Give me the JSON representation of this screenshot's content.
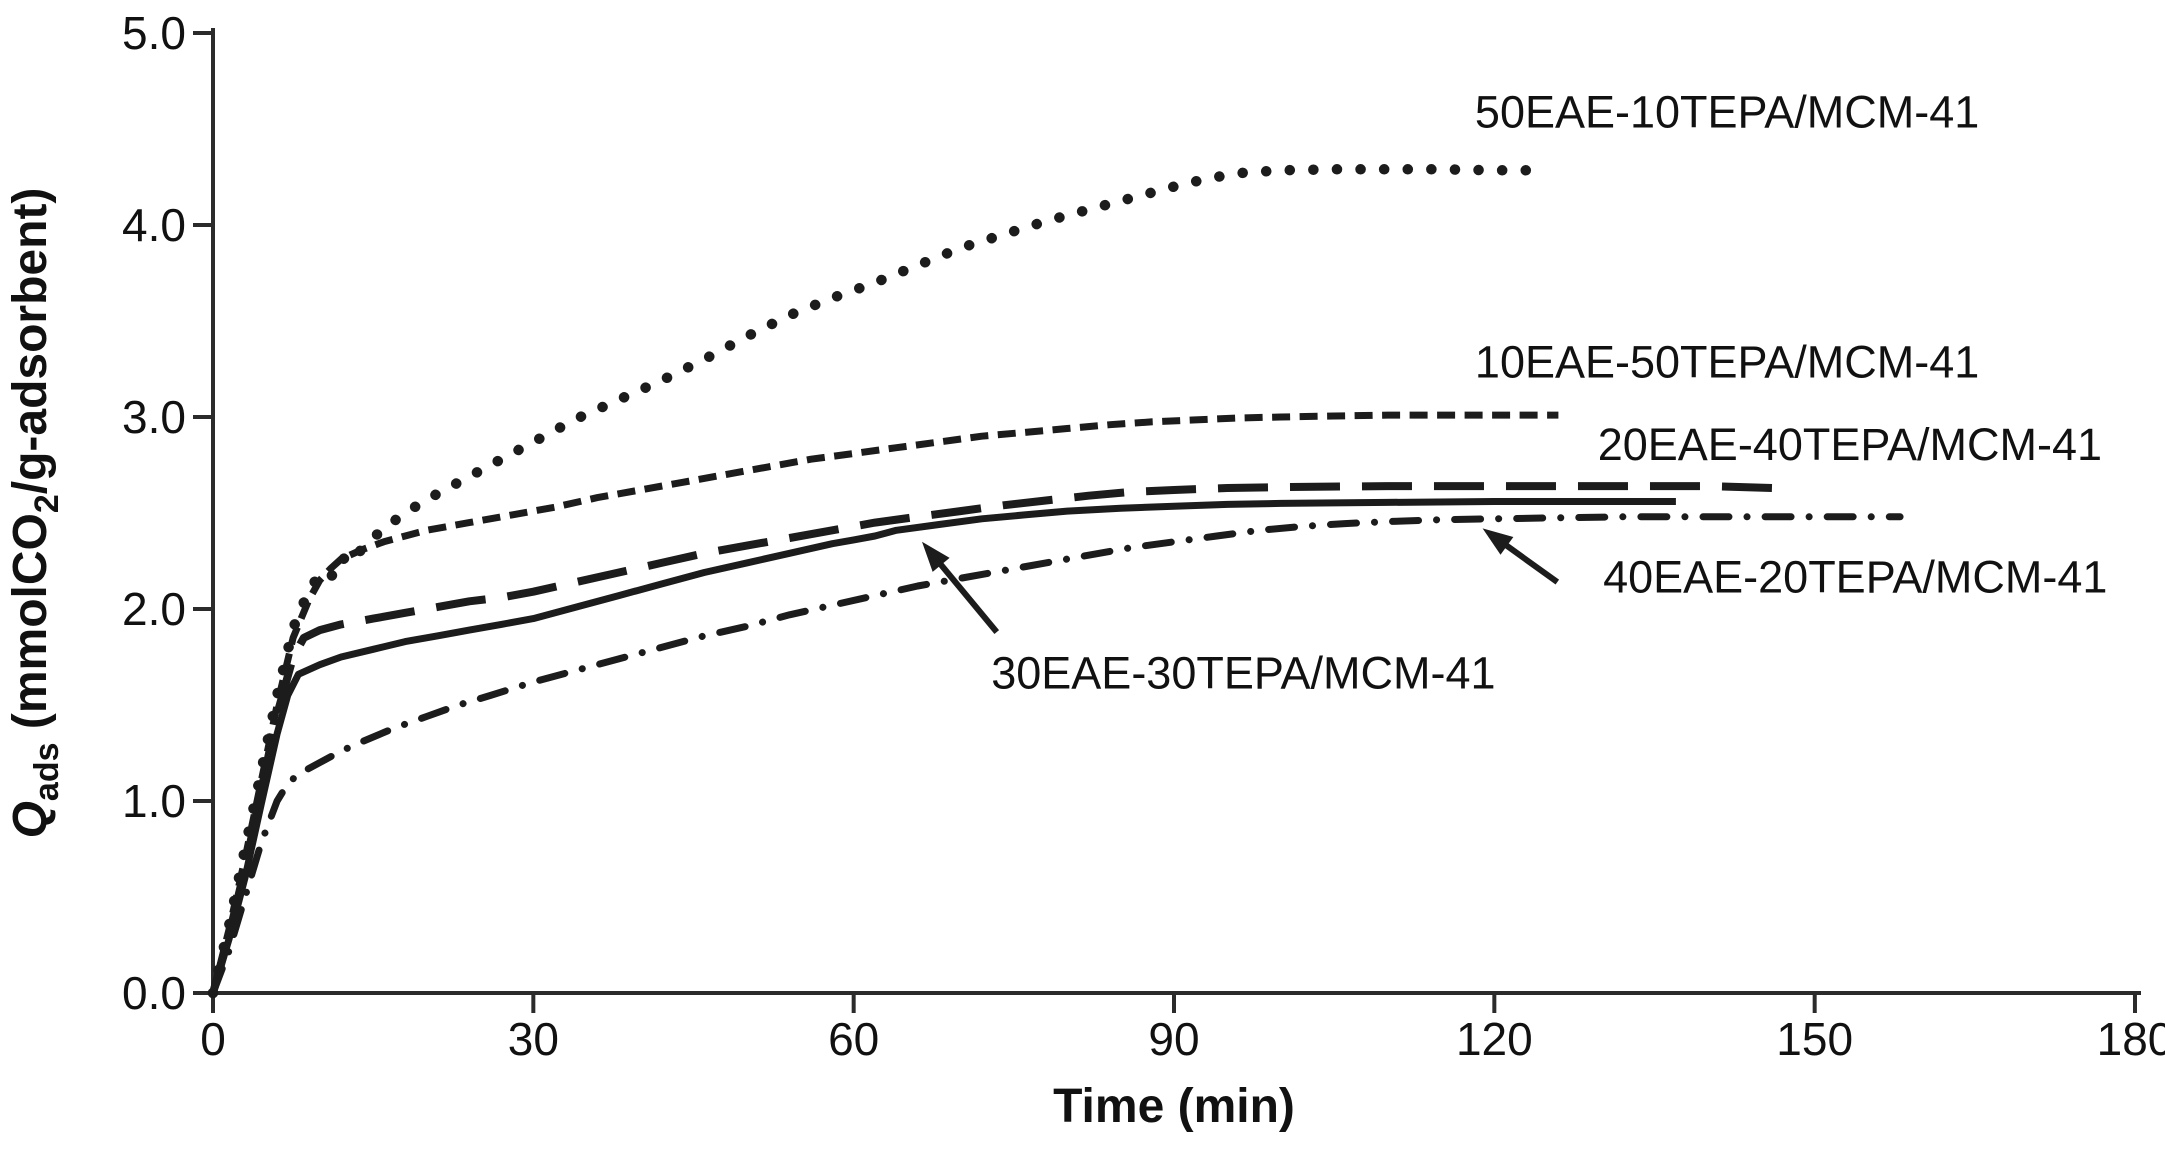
{
  "figure": {
    "background": "#ffffff",
    "ink": "#1c1c1c",
    "axis_color": "#2b2b2b"
  },
  "chart_data": {
    "type": "line",
    "title": "",
    "xlabel": "Time (min)",
    "ylabel": "Qads (mmolCO2/g-adsorbent)",
    "ylabel_parts": [
      {
        "text": "Q",
        "italic": true
      },
      {
        "text": "ads",
        "sub": true
      },
      {
        "text": " (mmolCO"
      },
      {
        "text": "2",
        "sub": true
      },
      {
        "text": "/g-adsorbent)"
      }
    ],
    "xlim": [
      0,
      180
    ],
    "ylim": [
      0.0,
      5.0
    ],
    "xticks": [
      "0",
      "30",
      "60",
      "90",
      "120",
      "150",
      "180"
    ],
    "yticks": [
      "0.0",
      "1.0",
      "2.0",
      "3.0",
      "4.0",
      "5.0"
    ],
    "grid": false,
    "legend_position": "inline-labels",
    "series": [
      {
        "name": "50EAE-10TEPA/MCM-41",
        "line_style": "dotted",
        "label_at": {
          "x": 141.8,
          "y": 4.59
        },
        "points": [
          [
            0,
            0
          ],
          [
            1.5,
            0.35
          ],
          [
            3,
            0.75
          ],
          [
            4.5,
            1.15
          ],
          [
            6,
            1.55
          ],
          [
            7.5,
            1.9
          ],
          [
            9,
            2.1
          ],
          [
            10,
            2.18
          ],
          [
            11,
            2.16
          ],
          [
            12,
            2.27
          ],
          [
            13,
            2.24
          ],
          [
            14,
            2.32
          ],
          [
            16,
            2.42
          ],
          [
            18,
            2.5
          ],
          [
            20,
            2.57
          ],
          [
            23,
            2.66
          ],
          [
            26,
            2.75
          ],
          [
            30,
            2.87
          ],
          [
            34,
            2.99
          ],
          [
            38,
            3.09
          ],
          [
            42,
            3.19
          ],
          [
            46,
            3.3
          ],
          [
            50,
            3.42
          ],
          [
            54,
            3.53
          ],
          [
            58,
            3.62
          ],
          [
            62,
            3.7
          ],
          [
            66,
            3.79
          ],
          [
            70,
            3.88
          ],
          [
            74,
            3.95
          ],
          [
            78,
            4.02
          ],
          [
            82,
            4.08
          ],
          [
            86,
            4.14
          ],
          [
            90,
            4.2
          ],
          [
            93,
            4.24
          ],
          [
            96,
            4.27
          ],
          [
            100,
            4.285
          ],
          [
            105,
            4.29
          ],
          [
            110,
            4.29
          ],
          [
            115,
            4.29
          ],
          [
            120,
            4.285
          ],
          [
            125,
            4.285
          ]
        ]
      },
      {
        "name": "10EAE-50TEPA/MCM-41",
        "line_style": "short-dash",
        "label_at": {
          "x": 141.8,
          "y": 3.29
        },
        "points": [
          [
            0,
            0
          ],
          [
            1.5,
            0.33
          ],
          [
            3,
            0.7
          ],
          [
            4.5,
            1.1
          ],
          [
            6,
            1.5
          ],
          [
            7.5,
            1.85
          ],
          [
            9,
            2.05
          ],
          [
            10,
            2.15
          ],
          [
            11,
            2.21
          ],
          [
            12,
            2.26
          ],
          [
            14,
            2.31
          ],
          [
            16,
            2.35
          ],
          [
            18,
            2.38
          ],
          [
            20,
            2.41
          ],
          [
            24,
            2.45
          ],
          [
            28,
            2.49
          ],
          [
            32,
            2.53
          ],
          [
            36,
            2.58
          ],
          [
            40,
            2.62
          ],
          [
            44,
            2.66
          ],
          [
            48,
            2.7
          ],
          [
            52,
            2.74
          ],
          [
            56,
            2.78
          ],
          [
            60,
            2.81
          ],
          [
            64,
            2.84
          ],
          [
            68,
            2.87
          ],
          [
            72,
            2.9
          ],
          [
            76,
            2.92
          ],
          [
            80,
            2.94
          ],
          [
            84,
            2.96
          ],
          [
            88,
            2.975
          ],
          [
            92,
            2.985
          ],
          [
            96,
            2.995
          ],
          [
            100,
            3.0
          ],
          [
            105,
            3.005
          ],
          [
            110,
            3.01
          ],
          [
            115,
            3.01
          ],
          [
            120,
            3.01
          ],
          [
            126,
            3.01
          ]
        ]
      },
      {
        "name": "20EAE-40TEPA/MCM-41",
        "line_style": "long-dash",
        "label_at": {
          "x": 153.3,
          "y": 2.86
        },
        "points": [
          [
            0,
            0
          ],
          [
            1.5,
            0.3
          ],
          [
            3,
            0.65
          ],
          [
            4.5,
            1.05
          ],
          [
            6,
            1.45
          ],
          [
            7.5,
            1.75
          ],
          [
            8.5,
            1.85
          ],
          [
            10,
            1.89
          ],
          [
            12,
            1.92
          ],
          [
            15,
            1.95
          ],
          [
            18,
            1.98
          ],
          [
            21,
            2.01
          ],
          [
            24,
            2.04
          ],
          [
            27,
            2.06
          ],
          [
            30,
            2.09
          ],
          [
            34,
            2.14
          ],
          [
            38,
            2.19
          ],
          [
            42,
            2.24
          ],
          [
            46,
            2.29
          ],
          [
            50,
            2.33
          ],
          [
            54,
            2.37
          ],
          [
            58,
            2.41
          ],
          [
            62,
            2.45
          ],
          [
            66,
            2.48
          ],
          [
            70,
            2.51
          ],
          [
            74,
            2.54
          ],
          [
            78,
            2.565
          ],
          [
            82,
            2.59
          ],
          [
            86,
            2.61
          ],
          [
            90,
            2.62
          ],
          [
            95,
            2.63
          ],
          [
            100,
            2.635
          ],
          [
            110,
            2.64
          ],
          [
            120,
            2.64
          ],
          [
            130,
            2.64
          ],
          [
            140,
            2.64
          ],
          [
            146,
            2.63
          ]
        ]
      },
      {
        "name": "30EAE-30TEPA/MCM-41",
        "line_style": "solid",
        "label_at": {
          "x": 96.5,
          "y": 1.67
        },
        "points": [
          [
            0,
            0
          ],
          [
            1.5,
            0.28
          ],
          [
            3,
            0.6
          ],
          [
            4.5,
            0.98
          ],
          [
            6,
            1.35
          ],
          [
            7,
            1.55
          ],
          [
            8,
            1.66
          ],
          [
            10,
            1.71
          ],
          [
            12,
            1.75
          ],
          [
            15,
            1.79
          ],
          [
            18,
            1.83
          ],
          [
            21,
            1.86
          ],
          [
            24,
            1.89
          ],
          [
            27,
            1.92
          ],
          [
            30,
            1.95
          ],
          [
            34,
            2.01
          ],
          [
            38,
            2.07
          ],
          [
            42,
            2.13
          ],
          [
            46,
            2.19
          ],
          [
            50,
            2.24
          ],
          [
            54,
            2.29
          ],
          [
            58,
            2.34
          ],
          [
            60,
            2.36
          ],
          [
            62,
            2.38
          ],
          [
            64,
            2.41
          ],
          [
            68,
            2.44
          ],
          [
            72,
            2.47
          ],
          [
            76,
            2.49
          ],
          [
            80,
            2.51
          ],
          [
            85,
            2.525
          ],
          [
            90,
            2.535
          ],
          [
            95,
            2.545
          ],
          [
            100,
            2.55
          ],
          [
            110,
            2.555
          ],
          [
            120,
            2.56
          ],
          [
            130,
            2.56
          ],
          [
            137,
            2.56
          ]
        ]
      },
      {
        "name": "40EAE-20TEPA/MCM-41",
        "line_style": "dash-dot",
        "label_at": {
          "x": 153.8,
          "y": 2.17
        },
        "points": [
          [
            0,
            0
          ],
          [
            1.5,
            0.22
          ],
          [
            3,
            0.5
          ],
          [
            4.5,
            0.78
          ],
          [
            6,
            1.0
          ],
          [
            7,
            1.09
          ],
          [
            8,
            1.14
          ],
          [
            10,
            1.2
          ],
          [
            12,
            1.26
          ],
          [
            14,
            1.31
          ],
          [
            17,
            1.38
          ],
          [
            20,
            1.44
          ],
          [
            23,
            1.5
          ],
          [
            26,
            1.55
          ],
          [
            30,
            1.62
          ],
          [
            34,
            1.68
          ],
          [
            38,
            1.74
          ],
          [
            42,
            1.8
          ],
          [
            46,
            1.86
          ],
          [
            50,
            1.91
          ],
          [
            54,
            1.97
          ],
          [
            58,
            2.02
          ],
          [
            62,
            2.07
          ],
          [
            66,
            2.12
          ],
          [
            70,
            2.16
          ],
          [
            74,
            2.2
          ],
          [
            78,
            2.24
          ],
          [
            82,
            2.28
          ],
          [
            86,
            2.32
          ],
          [
            90,
            2.35
          ],
          [
            94,
            2.38
          ],
          [
            98,
            2.41
          ],
          [
            102,
            2.43
          ],
          [
            106,
            2.445
          ],
          [
            110,
            2.455
          ],
          [
            115,
            2.465
          ],
          [
            120,
            2.47
          ],
          [
            126,
            2.475
          ],
          [
            132,
            2.48
          ],
          [
            140,
            2.48
          ],
          [
            150,
            2.48
          ],
          [
            158,
            2.48
          ]
        ]
      }
    ],
    "annotations": [
      {
        "type": "arrow",
        "points_to_series": "30EAE-30TEPA/MCM-41",
        "from": {
          "x": 73.4,
          "y": 1.88
        },
        "to": {
          "x": 66.4,
          "y": 2.35
        }
      },
      {
        "type": "arrow",
        "points_to_series": "40EAE-20TEPA/MCM-41",
        "from": {
          "x": 125.9,
          "y": 2.14
        },
        "to": {
          "x": 118.9,
          "y": 2.42
        }
      }
    ]
  }
}
